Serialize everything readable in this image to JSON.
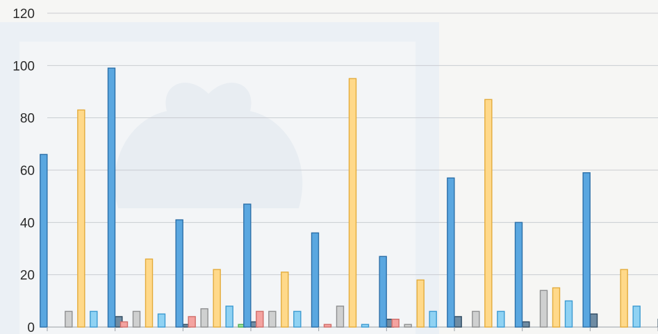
{
  "chart_data": {
    "type": "bar",
    "title": "",
    "xlabel": "",
    "ylabel": "",
    "ylim": [
      0,
      120
    ],
    "yticks": [
      0,
      20,
      40,
      60,
      80,
      100,
      120
    ],
    "grid": true,
    "legend": "none",
    "categories": [
      "",
      "",
      "",
      "",
      "",
      "",
      "",
      "",
      ""
    ],
    "series": [
      {
        "color": "#5aa7e0",
        "stroke": "#2b6fa8",
        "values": [
          66,
          99,
          41,
          47,
          36,
          27,
          57,
          40,
          59
        ]
      },
      {
        "color": "#f4a3a0",
        "stroke": "#d06d69",
        "values": [
          0,
          2,
          4,
          6,
          1,
          3,
          0,
          0,
          0
        ]
      },
      {
        "color": "#cfd0d0",
        "stroke": "#8e8f90",
        "values": [
          6,
          6,
          7,
          6,
          8,
          1,
          6,
          14,
          0
        ]
      },
      {
        "color": "#ffd98a",
        "stroke": "#e3ab3b",
        "values": [
          83,
          26,
          22,
          21,
          95,
          18,
          87,
          15,
          22
        ]
      },
      {
        "color": "#8fd2f3",
        "stroke": "#3b9ad1",
        "values": [
          6,
          5,
          8,
          6,
          1,
          6,
          6,
          10,
          8
        ]
      },
      {
        "color": "#9be39b",
        "stroke": "#4caf50",
        "values": [
          0,
          0,
          1,
          0,
          0,
          0,
          0,
          0,
          0
        ]
      },
      {
        "color": "#6f8ca3",
        "stroke": "#2f4a60",
        "values": [
          4,
          1,
          2,
          0,
          3,
          4,
          2,
          5,
          3
        ]
      }
    ]
  },
  "colors": {
    "background": "#f6f6f4",
    "grid": "#c9ccd1",
    "watermark": "#e6eef7"
  }
}
